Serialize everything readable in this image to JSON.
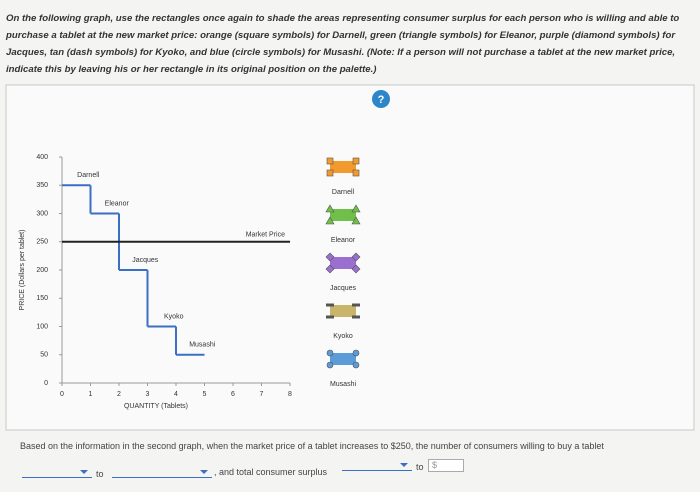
{
  "instructions": {
    "text_1": "On the following graph, use the rectangles once again to shade the areas representing consumer surplus for each person who is willing and able to purchase a tablet at the new market price: orange (square symbols) for Darnell, green (triangle symbols) for Eleanor, purple (diamond symbols) for Jacques, tan (dash symbols) for Kyoko, and blue (circle symbols) for Musashi. (",
    "note_label": "Note:",
    "text_2": " If a person will ",
    "emphasis": "not",
    "text_3": " purchase a tablet at the new market price, indicate this by leaving his or her rectangle in its original position on the palette.)"
  },
  "help": "?",
  "chart_data": {
    "type": "step",
    "x_label": "QUANTITY (Tablets)",
    "y_label": "PRICE (Dollars per tablet)",
    "categories": [
      "Darnell",
      "Eleanor",
      "Jacques",
      "Kyoko",
      "Musashi"
    ],
    "x": [
      1,
      2,
      3,
      4,
      5
    ],
    "values": [
      350,
      300,
      200,
      100,
      50
    ],
    "colors": [
      "#f39a2e",
      "#6fbf4a",
      "#9a6fd0",
      "#c8b46a",
      "#5a9bd8"
    ],
    "line_color": "#3b6fc4",
    "market_price": {
      "label": "Market Price",
      "value": 250
    },
    "xlim": [
      0,
      8
    ],
    "xticks": [
      0,
      1,
      2,
      3,
      4,
      5,
      6,
      7,
      8
    ],
    "ylim": [
      0,
      400
    ],
    "yticks": [
      0,
      50,
      100,
      150,
      200,
      250,
      300,
      350,
      400
    ]
  },
  "question": {
    "text_1": "Based on the information in the second graph, when the market price of a tablet increases to $250, the number of consumers willing to buy a tablet",
    "to_1": "to",
    "text_2": ", and total consumer surplus",
    "to_2": "to",
    "currency": "$"
  }
}
